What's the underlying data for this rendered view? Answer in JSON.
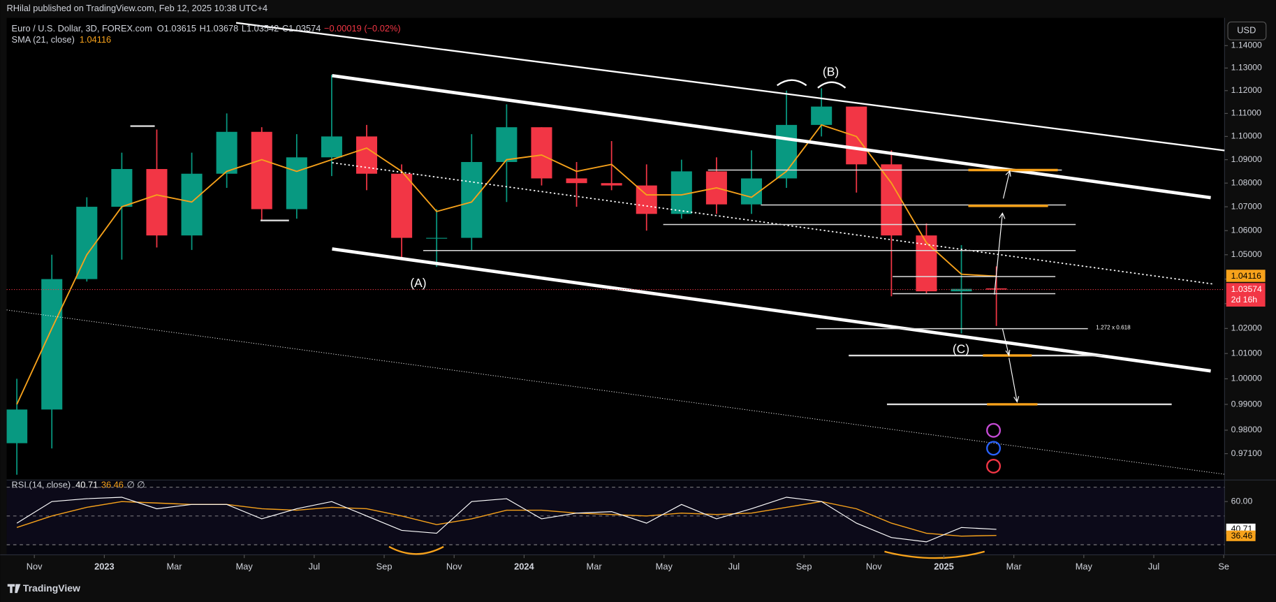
{
  "header": {
    "publisher": "RHilal published on TradingView.com, Feb 12, 2025 10:38 UTC+4",
    "currency": "USD",
    "footer": "TradingView"
  },
  "chart_data": {
    "type": "candlestick",
    "legend": {
      "symbol": "Euro / U.S. Dollar, 3D, FOREX.com",
      "open": "O1.03615",
      "high": "H1.03678",
      "low": "L1.03542",
      "close": "C1.03574",
      "change": "−0.00019 (−0.02%)"
    },
    "x": [
      "2022-10",
      "2022-11",
      "2022-12",
      "2023-01",
      "2023-02",
      "2023-03",
      "2023-04",
      "2023-05",
      "2023-06",
      "2023-07",
      "2023-08",
      "2023-09",
      "2023-10",
      "2023-11",
      "2023-12",
      "2024-01",
      "2024-02",
      "2024-03",
      "2024-04",
      "2024-05",
      "2024-06",
      "2024-07",
      "2024-08",
      "2024-09",
      "2024-10",
      "2024-11",
      "2024-12",
      "2025-01",
      "2025-02"
    ],
    "open": [
      0.975,
      0.988,
      1.04,
      1.07,
      1.086,
      1.058,
      1.084,
      1.102,
      1.069,
      1.091,
      1.1,
      1.084,
      1.057,
      1.057,
      1.089,
      1.104,
      1.082,
      1.08,
      1.079,
      1.067,
      1.085,
      1.071,
      1.082,
      1.105,
      1.113,
      1.088,
      1.058,
      1.035,
      1.0362
    ],
    "high": [
      1.0,
      1.05,
      1.074,
      1.093,
      1.103,
      1.093,
      1.11,
      1.104,
      1.101,
      1.127,
      1.105,
      1.088,
      1.069,
      1.101,
      1.114,
      1.104,
      1.089,
      1.098,
      1.088,
      1.09,
      1.091,
      1.094,
      1.12,
      1.121,
      1.113,
      1.094,
      1.063,
      1.054,
      1.0452
    ],
    "low": [
      0.963,
      0.973,
      1.039,
      1.048,
      1.053,
      1.052,
      1.078,
      1.064,
      1.065,
      1.083,
      1.077,
      1.049,
      1.045,
      1.052,
      1.072,
      1.079,
      1.07,
      1.077,
      1.06,
      1.065,
      1.067,
      1.067,
      1.078,
      1.1,
      1.076,
      1.033,
      1.034,
      1.018,
      1.021
    ],
    "close": [
      0.988,
      1.04,
      1.07,
      1.086,
      1.058,
      1.084,
      1.102,
      1.069,
      1.091,
      1.1,
      1.084,
      1.057,
      1.057,
      1.089,
      1.104,
      1.082,
      1.08,
      1.079,
      1.067,
      1.085,
      1.071,
      1.082,
      1.105,
      1.113,
      1.088,
      1.058,
      1.035,
      1.036,
      1.03574
    ],
    "up_color": "#089981",
    "down_color": "#f23645",
    "countdown": "2d 16h",
    "sma": {
      "name": "SMA (21, close)",
      "color": "#f7a21b",
      "values": [
        0.99,
        1.02,
        1.05,
        1.07,
        1.075,
        1.072,
        1.085,
        1.09,
        1.085,
        1.09,
        1.095,
        1.085,
        1.068,
        1.072,
        1.09,
        1.092,
        1.085,
        1.088,
        1.075,
        1.075,
        1.078,
        1.074,
        1.085,
        1.105,
        1.1,
        1.08,
        1.055,
        1.042,
        1.04116
      ]
    },
    "log_scale": true,
    "ylim": [
      0.961,
      1.1525
    ],
    "yticks": [
      {
        "value": 1.14,
        "label": "1.14000"
      },
      {
        "value": 1.13,
        "label": "1.13000"
      },
      {
        "value": 1.12,
        "label": "1.12000"
      },
      {
        "value": 1.11,
        "label": "1.11000"
      },
      {
        "value": 1.1,
        "label": "1.10000"
      },
      {
        "value": 1.09,
        "label": "1.09000"
      },
      {
        "value": 1.08,
        "label": "1.08000"
      },
      {
        "value": 1.07,
        "label": "1.07000"
      },
      {
        "value": 1.06,
        "label": "1.06000"
      },
      {
        "value": 1.05,
        "label": "1.05000"
      },
      {
        "value": 1.04,
        "label": "1.04000"
      },
      {
        "value": 1.03,
        "label": "1.03000"
      },
      {
        "value": 1.02,
        "label": "1.02000"
      },
      {
        "value": 1.01,
        "label": "1.01000"
      },
      {
        "value": 1.0,
        "label": "1.00000"
      },
      {
        "value": 0.99,
        "label": "0.99000"
      },
      {
        "value": 0.98,
        "label": "0.98000"
      },
      {
        "value": 0.971,
        "label": "0.97100"
      }
    ],
    "xlim": [
      "2022-10",
      "2025-10"
    ],
    "xticks": [
      {
        "value": "2022-11",
        "label": "Nov"
      },
      {
        "value": "2023-01",
        "label": "2023"
      },
      {
        "value": "2023-03",
        "label": "Mar"
      },
      {
        "value": "2023-05",
        "label": "May"
      },
      {
        "value": "2023-07",
        "label": "Jul"
      },
      {
        "value": "2023-09",
        "label": "Sep"
      },
      {
        "value": "2023-11",
        "label": "Nov"
      },
      {
        "value": "2024-01",
        "label": "2024"
      },
      {
        "value": "2024-03",
        "label": "Mar"
      },
      {
        "value": "2024-05",
        "label": "May"
      },
      {
        "value": "2024-07",
        "label": "Jul"
      },
      {
        "value": "2024-09",
        "label": "Sep"
      },
      {
        "value": "2024-11",
        "label": "Nov"
      },
      {
        "value": "2025-01",
        "label": "2025"
      },
      {
        "value": "2025-03",
        "label": "Mar"
      },
      {
        "value": "2025-05",
        "label": "May"
      },
      {
        "value": "2025-07",
        "label": "Jul"
      },
      {
        "value": "2025-09",
        "label": "Se"
      }
    ],
    "annotations": [
      "(A)",
      "(B)",
      "(C)",
      "1.272 x 0.618"
    ],
    "rsi": {
      "name": "RSI (14, close)",
      "color": "#ffffff",
      "ma_color": "#f7a21b",
      "suffix": "∅ ∅",
      "values": [
        45,
        60,
        62,
        63,
        55,
        58,
        58,
        48,
        55,
        60,
        50,
        40,
        38,
        60,
        62,
        48,
        52,
        53,
        45,
        58,
        48,
        55,
        63,
        60,
        45,
        35,
        32,
        42,
        40.71
      ],
      "ma_values": [
        42,
        50,
        56,
        60,
        59,
        58,
        58,
        55,
        54,
        56,
        55,
        50,
        44,
        48,
        54,
        54,
        52,
        51,
        50,
        52,
        51,
        52,
        56,
        60,
        55,
        45,
        38,
        36,
        36.46
      ],
      "ylim": [
        23,
        75
      ],
      "yticks": [
        {
          "value": 60,
          "label": "60.00"
        }
      ],
      "bands": [
        70,
        50,
        30
      ]
    }
  }
}
